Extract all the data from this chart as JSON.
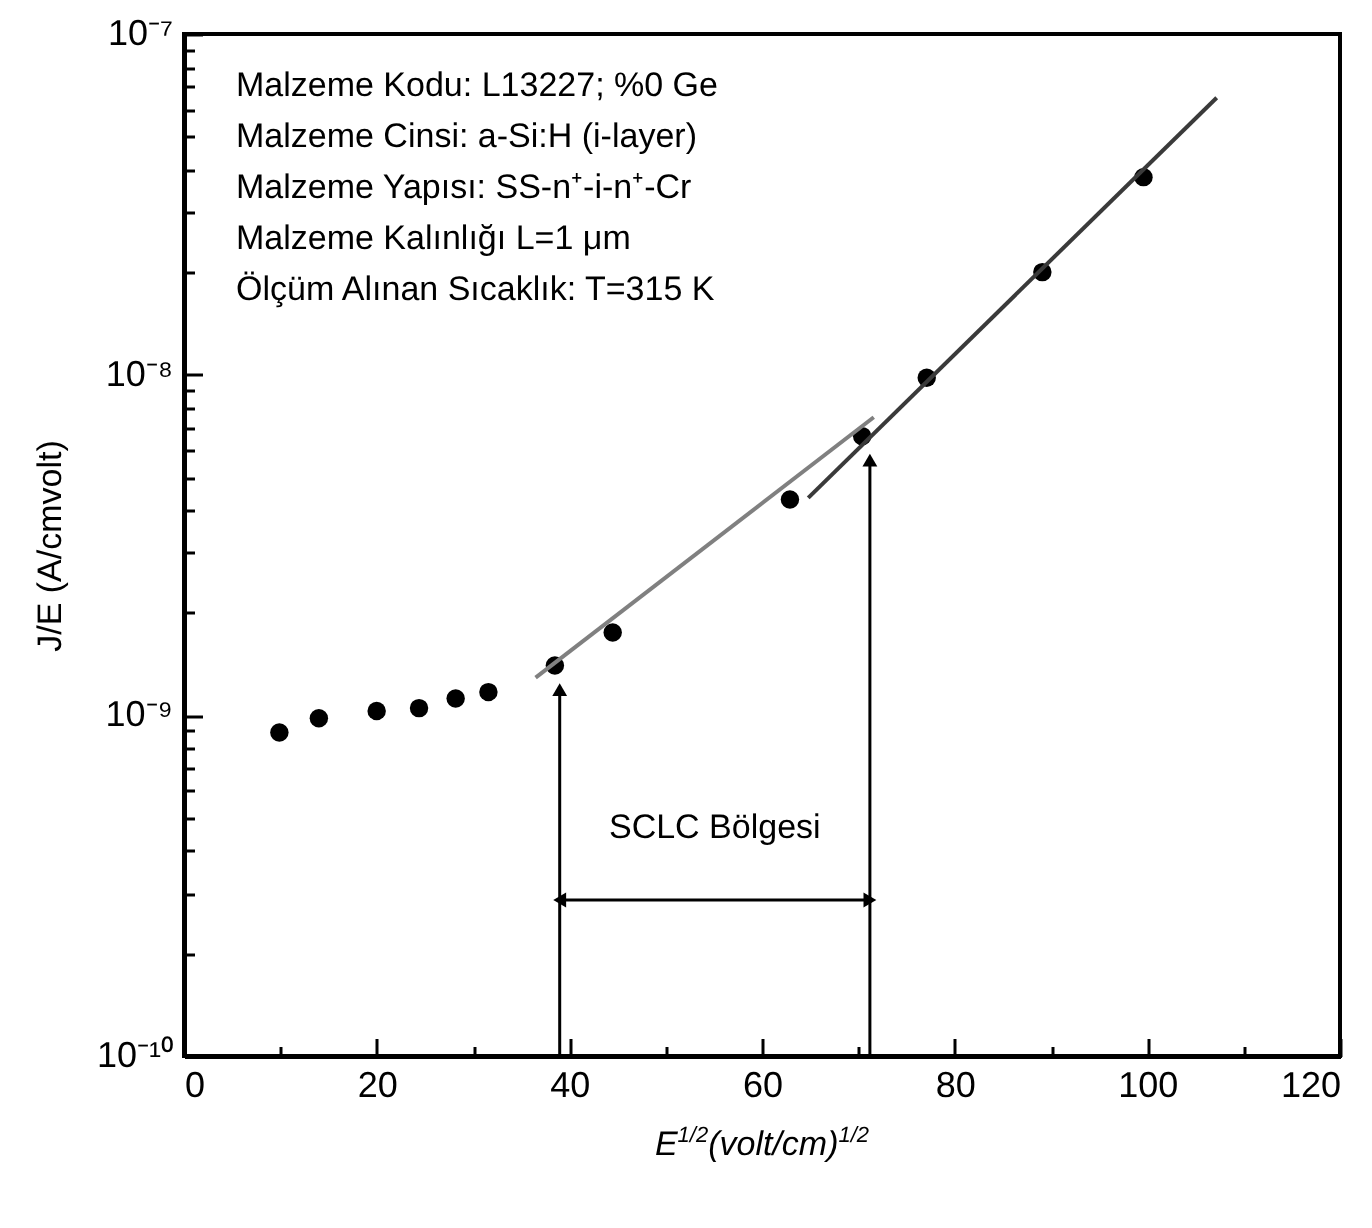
{
  "chart_data": {
    "type": "scatter",
    "xlabel": "E$^{1/2}$(volt/cm)$^{1/2}$",
    "ylabel": "J/E (A/cmvolt)",
    "log": true,
    "grid": false,
    "marker": "circle",
    "xlim": [
      0,
      120
    ],
    "xticks": [
      0,
      {
        "value": 10,
        "label": null
      },
      20,
      {
        "value": 30,
        "label": null
      },
      40,
      {
        "value": 50,
        "label": null
      },
      60,
      {
        "value": 70,
        "label": null
      },
      80,
      {
        "value": 90,
        "label": null
      },
      100,
      {
        "value": 110,
        "label": null
      },
      120
    ],
    "ylim": [
      1e-10,
      1e-07
    ],
    "yticks": [
      {
        "value": 1e-10,
        "label": "10⁻¹⁰"
      },
      {
        "value": 2e-10,
        "label": null
      },
      {
        "value": 3e-10,
        "label": null
      },
      {
        "value": 4e-10,
        "label": null
      },
      {
        "value": 5e-10,
        "label": null
      },
      {
        "value": 6e-10,
        "label": null
      },
      {
        "value": 7e-10,
        "label": null
      },
      {
        "value": 8e-10,
        "label": null
      },
      {
        "value": 9e-10,
        "label": null
      },
      {
        "value": 1e-09,
        "label": "10⁻⁹"
      },
      {
        "value": 2e-09,
        "label": null
      },
      {
        "value": 3e-09,
        "label": null
      },
      {
        "value": 4e-09,
        "label": null
      },
      {
        "value": 5e-09,
        "label": null
      },
      {
        "value": 6e-09,
        "label": null
      },
      {
        "value": 7e-09,
        "label": null
      },
      {
        "value": 8e-09,
        "label": null
      },
      {
        "value": 9e-09,
        "label": null
      },
      {
        "value": 1e-08,
        "label": "10⁻⁸"
      },
      {
        "value": 2e-08,
        "label": null
      },
      {
        "value": 3e-08,
        "label": null
      },
      {
        "value": 4e-08,
        "label": null
      },
      {
        "value": 5e-08,
        "label": null
      },
      {
        "value": 6e-08,
        "label": null
      },
      {
        "value": 7e-08,
        "label": null
      },
      {
        "value": 8e-08,
        "label": null
      },
      {
        "value": 9e-08,
        "label": null
      },
      {
        "value": 1e-07,
        "label": "10⁻⁷"
      }
    ],
    "series": [
      {
        "color": "#000000",
        "x": [
          9.9,
          14.0,
          20.0,
          24.4,
          28.2,
          31.6,
          38.5,
          44.5,
          62.9,
          70.4,
          77.1,
          89.1,
          99.6
        ],
        "values": [
          8.9e-10,
          9.8e-10,
          1.03e-09,
          1.05e-09,
          1.12e-09,
          1.17e-09,
          1.4e-09,
          1.75e-09,
          4.3e-09,
          6.6e-09,
          9.8e-09,
          2e-08,
          3.8e-08
        ]
      },
      {
        "type": "line",
        "color": "#808080",
        "marker": "none",
        "x": [
          36.5,
          71.6
        ],
        "values": [
          1.29e-09,
          7.5e-09
        ]
      },
      {
        "type": "line",
        "color": "#3a3a3a",
        "marker": "none",
        "x": [
          64.8,
          107.2
        ],
        "values": [
          4.35e-09,
          6.5e-08
        ]
      }
    ],
    "ref_lines": [
      {
        "axis": "x",
        "value": 39
      },
      {
        "axis": "x",
        "value": 71.2
      }
    ],
    "annotations": [
      "Malzeme Kodu: L13227; %0 Ge",
      "Malzeme Cinsi: a-Si:H (i-layer)",
      "Malzeme Yapısı: SS-n⁺-i-n⁺-Cr",
      "Malzeme Kalınlığı L=1 μm",
      "Ölçüm Alınan Sıcaklık: T=315 K",
      "SCLC Bölgesi"
    ]
  }
}
